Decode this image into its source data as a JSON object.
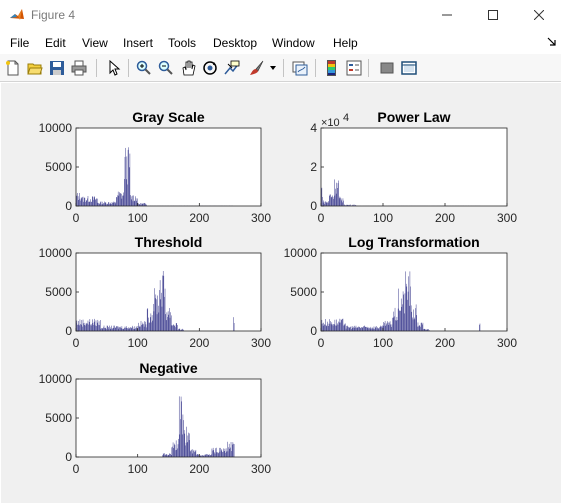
{
  "window": {
    "title": "Figure 4",
    "controls": [
      "minimize",
      "maximize",
      "close"
    ]
  },
  "menu": [
    "File",
    "Edit",
    "View",
    "Insert",
    "Tools",
    "Desktop",
    "Window",
    "Help"
  ],
  "toolbar": [
    "new-figure-icon",
    "open-file-icon",
    "save-icon",
    "print-icon",
    "pointer-icon",
    "zoom-in-icon",
    "zoom-out-icon",
    "pan-hand-icon",
    "rotate-3d-icon",
    "data-cursor-icon",
    "brush-icon",
    "link-plot-icon",
    "colorbar-icon",
    "legend-icon",
    "hide-plot-tools-icon",
    "show-plot-tools-icon"
  ],
  "colors": {
    "bar": "#3d3d8f",
    "figure_bg": "#f0f0f0",
    "axes_bg": "#ffffff"
  },
  "chart_data": [
    {
      "type": "bar",
      "title": "Gray Scale",
      "xlim": [
        0,
        300
      ],
      "ylim": [
        0,
        10000
      ],
      "xticks": [
        "0",
        "100",
        "200",
        "300"
      ],
      "yticks": [
        "0",
        "5000",
        "10000"
      ],
      "series": [
        {
          "peaks": [
            {
              "x": 0,
              "w": 10,
              "h": 1800
            },
            {
              "x": 10,
              "w": 25,
              "h": 1300
            },
            {
              "x": 35,
              "w": 30,
              "h": 600
            },
            {
              "x": 65,
              "w": 13,
              "h": 2000
            },
            {
              "x": 78,
              "w": 10,
              "h": 7800
            },
            {
              "x": 88,
              "w": 12,
              "h": 1600
            },
            {
              "x": 100,
              "w": 15,
              "h": 400
            },
            {
              "x": 115,
              "w": 140,
              "h": 40
            }
          ]
        }
      ]
    },
    {
      "type": "bar",
      "title": "Power Law",
      "xlim": [
        0,
        300
      ],
      "ylim": [
        0,
        40000
      ],
      "exponent": "10^4",
      "xticks": [
        "0",
        "100",
        "200",
        "300"
      ],
      "yticks": [
        "0",
        "2",
        "4"
      ],
      "series": [
        {
          "peaks": [
            {
              "x": 0,
              "w": 3,
              "h": 12000
            },
            {
              "x": 3,
              "w": 10,
              "h": 3000
            },
            {
              "x": 13,
              "w": 8,
              "h": 8000
            },
            {
              "x": 21,
              "w": 8,
              "h": 15000
            },
            {
              "x": 29,
              "w": 8,
              "h": 5000
            },
            {
              "x": 37,
              "w": 20,
              "h": 800
            },
            {
              "x": 57,
              "w": 200,
              "h": 100
            }
          ]
        }
      ]
    },
    {
      "type": "bar",
      "title": "Threshold",
      "xlim": [
        0,
        300
      ],
      "ylim": [
        0,
        10000
      ],
      "xticks": [
        "0",
        "100",
        "200",
        "300"
      ],
      "yticks": [
        "0",
        "5000",
        "10000"
      ],
      "series": [
        {
          "peaks": [
            {
              "x": 0,
              "w": 40,
              "h": 1600
            },
            {
              "x": 40,
              "w": 60,
              "h": 700
            },
            {
              "x": 100,
              "w": 15,
              "h": 1300
            },
            {
              "x": 115,
              "w": 10,
              "h": 3000
            },
            {
              "x": 125,
              "w": 10,
              "h": 5500
            },
            {
              "x": 135,
              "w": 10,
              "h": 8000
            },
            {
              "x": 145,
              "w": 10,
              "h": 3500
            },
            {
              "x": 155,
              "w": 10,
              "h": 1200
            },
            {
              "x": 165,
              "w": 10,
              "h": 300
            },
            {
              "x": 255,
              "w": 2,
              "h": 2200
            }
          ]
        }
      ]
    },
    {
      "type": "bar",
      "title": "Log Transformation",
      "xlim": [
        0,
        300
      ],
      "ylim": [
        0,
        10000
      ],
      "xticks": [
        "0",
        "100",
        "200",
        "300"
      ],
      "yticks": [
        "0",
        "5000",
        "10000"
      ],
      "series": [
        {
          "peaks": [
            {
              "x": 0,
              "w": 40,
              "h": 1600
            },
            {
              "x": 40,
              "w": 60,
              "h": 700
            },
            {
              "x": 100,
              "w": 15,
              "h": 1300
            },
            {
              "x": 115,
              "w": 10,
              "h": 3000
            },
            {
              "x": 125,
              "w": 10,
              "h": 5500
            },
            {
              "x": 135,
              "w": 10,
              "h": 8000
            },
            {
              "x": 145,
              "w": 10,
              "h": 3500
            },
            {
              "x": 155,
              "w": 10,
              "h": 1200
            },
            {
              "x": 165,
              "w": 10,
              "h": 300
            },
            {
              "x": 255,
              "w": 2,
              "h": 1800
            }
          ]
        }
      ]
    },
    {
      "type": "bar",
      "title": "Negative",
      "xlim": [
        0,
        300
      ],
      "ylim": [
        0,
        10000
      ],
      "xticks": [
        "0",
        "100",
        "200",
        "300"
      ],
      "yticks": [
        "0",
        "5000",
        "10000"
      ],
      "series": [
        {
          "peaks": [
            {
              "x": 140,
              "w": 15,
              "h": 500
            },
            {
              "x": 155,
              "w": 12,
              "h": 2500
            },
            {
              "x": 167,
              "w": 10,
              "h": 7800
            },
            {
              "x": 177,
              "w": 8,
              "h": 4000
            },
            {
              "x": 185,
              "w": 10,
              "h": 1000
            },
            {
              "x": 195,
              "w": 25,
              "h": 400
            },
            {
              "x": 220,
              "w": 25,
              "h": 1200
            },
            {
              "x": 245,
              "w": 12,
              "h": 2000
            }
          ]
        }
      ]
    }
  ]
}
